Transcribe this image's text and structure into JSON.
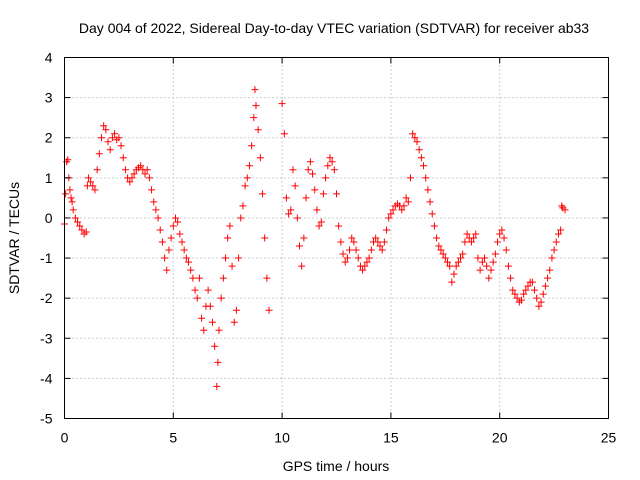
{
  "chart_data": {
    "type": "scatter",
    "title": "Day 004 of 2022, Sidereal Day-to-day VTEC variation (SDTVAR) for receiver ab33",
    "xlabel": "GPS time / hours",
    "ylabel": "SDTVAR / TECUs",
    "xlim": [
      0,
      25
    ],
    "ylim": [
      -5,
      4
    ],
    "xticks": [
      0,
      5,
      10,
      15,
      20,
      25
    ],
    "yticks": [
      -5,
      -4,
      -3,
      -2,
      -1,
      0,
      1,
      2,
      3,
      4
    ],
    "xtick_labels": [
      "0",
      "5",
      "10",
      "15",
      "20",
      "25"
    ],
    "ytick_labels": [
      "-5",
      "-4",
      "-3",
      "-2",
      "-1",
      "0",
      "1",
      "2",
      "3",
      "4"
    ],
    "grid": true,
    "marker": "+",
    "marker_color": "#ff0000",
    "series": [
      {
        "name": "SDTVAR",
        "points": [
          [
            0.0,
            -0.15
          ],
          [
            0.05,
            0.6
          ],
          [
            0.1,
            1.4
          ],
          [
            0.15,
            1.45
          ],
          [
            0.2,
            1.0
          ],
          [
            0.25,
            0.7
          ],
          [
            0.3,
            0.5
          ],
          [
            0.35,
            0.4
          ],
          [
            0.4,
            0.2
          ],
          [
            0.5,
            0.0
          ],
          [
            0.6,
            -0.1
          ],
          [
            0.7,
            -0.2
          ],
          [
            0.8,
            -0.3
          ],
          [
            0.9,
            -0.4
          ],
          [
            1.0,
            -0.35
          ],
          [
            1.05,
            0.8
          ],
          [
            1.1,
            1.0
          ],
          [
            1.2,
            0.9
          ],
          [
            1.3,
            0.8
          ],
          [
            1.4,
            0.7
          ],
          [
            1.5,
            1.2
          ],
          [
            1.6,
            1.6
          ],
          [
            1.7,
            2.0
          ],
          [
            1.8,
            2.3
          ],
          [
            1.9,
            2.2
          ],
          [
            2.0,
            1.9
          ],
          [
            2.1,
            1.7
          ],
          [
            2.2,
            2.0
          ],
          [
            2.3,
            2.1
          ],
          [
            2.4,
            1.95
          ],
          [
            2.5,
            2.0
          ],
          [
            2.6,
            1.8
          ],
          [
            2.7,
            1.5
          ],
          [
            2.8,
            1.2
          ],
          [
            2.9,
            1.0
          ],
          [
            3.0,
            0.9
          ],
          [
            3.1,
            1.0
          ],
          [
            3.2,
            1.1
          ],
          [
            3.3,
            1.2
          ],
          [
            3.4,
            1.25
          ],
          [
            3.5,
            1.3
          ],
          [
            3.6,
            1.2
          ],
          [
            3.7,
            1.1
          ],
          [
            3.8,
            1.2
          ],
          [
            3.9,
            1.0
          ],
          [
            4.0,
            0.7
          ],
          [
            4.1,
            0.4
          ],
          [
            4.2,
            0.2
          ],
          [
            4.3,
            0.0
          ],
          [
            4.4,
            -0.3
          ],
          [
            4.5,
            -0.6
          ],
          [
            4.6,
            -1.0
          ],
          [
            4.7,
            -1.3
          ],
          [
            4.8,
            -0.8
          ],
          [
            4.9,
            -0.5
          ],
          [
            5.0,
            -0.2
          ],
          [
            5.1,
            0.0
          ],
          [
            5.2,
            -0.1
          ],
          [
            5.3,
            -0.4
          ],
          [
            5.4,
            -0.6
          ],
          [
            5.5,
            -0.8
          ],
          [
            5.6,
            -1.0
          ],
          [
            5.7,
            -1.1
          ],
          [
            5.8,
            -1.3
          ],
          [
            5.9,
            -1.5
          ],
          [
            6.0,
            -1.8
          ],
          [
            6.1,
            -2.0
          ],
          [
            6.2,
            -1.5
          ],
          [
            6.3,
            -2.5
          ],
          [
            6.4,
            -2.8
          ],
          [
            6.5,
            -2.2
          ],
          [
            6.6,
            -1.8
          ],
          [
            6.7,
            -2.2
          ],
          [
            6.8,
            -2.6
          ],
          [
            6.9,
            -3.2
          ],
          [
            7.0,
            -4.2
          ],
          [
            7.05,
            -3.6
          ],
          [
            7.1,
            -2.8
          ],
          [
            7.2,
            -2.0
          ],
          [
            7.3,
            -1.5
          ],
          [
            7.4,
            -1.0
          ],
          [
            7.5,
            -0.5
          ],
          [
            7.6,
            -0.2
          ],
          [
            7.7,
            -1.2
          ],
          [
            7.8,
            -2.6
          ],
          [
            7.9,
            -2.3
          ],
          [
            8.0,
            -1.0
          ],
          [
            8.1,
            0.0
          ],
          [
            8.2,
            0.3
          ],
          [
            8.3,
            0.8
          ],
          [
            8.4,
            1.0
          ],
          [
            8.5,
            1.3
          ],
          [
            8.6,
            1.8
          ],
          [
            8.7,
            2.5
          ],
          [
            8.75,
            3.2
          ],
          [
            8.8,
            2.8
          ],
          [
            8.9,
            2.2
          ],
          [
            9.0,
            1.5
          ],
          [
            9.1,
            0.6
          ],
          [
            9.2,
            -0.5
          ],
          [
            9.3,
            -1.5
          ],
          [
            9.4,
            -2.3
          ],
          [
            10.0,
            2.85
          ],
          [
            10.1,
            2.1
          ],
          [
            10.2,
            0.5
          ],
          [
            10.3,
            0.1
          ],
          [
            10.4,
            0.2
          ],
          [
            10.5,
            1.2
          ],
          [
            10.6,
            0.8
          ],
          [
            10.7,
            0.0
          ],
          [
            10.8,
            -0.7
          ],
          [
            10.9,
            -1.2
          ],
          [
            11.0,
            -0.5
          ],
          [
            11.1,
            0.5
          ],
          [
            11.2,
            1.2
          ],
          [
            11.3,
            1.4
          ],
          [
            11.4,
            1.1
          ],
          [
            11.5,
            0.7
          ],
          [
            11.6,
            0.2
          ],
          [
            11.7,
            -0.2
          ],
          [
            11.8,
            -0.1
          ],
          [
            11.9,
            0.6
          ],
          [
            12.0,
            1.0
          ],
          [
            12.1,
            1.3
          ],
          [
            12.2,
            1.5
          ],
          [
            12.3,
            1.4
          ],
          [
            12.4,
            1.2
          ],
          [
            12.5,
            0.6
          ],
          [
            12.6,
            -0.2
          ],
          [
            12.7,
            -0.6
          ],
          [
            12.8,
            -0.9
          ],
          [
            12.9,
            -1.1
          ],
          [
            13.0,
            -1.0
          ],
          [
            13.1,
            -0.8
          ],
          [
            13.2,
            -0.5
          ],
          [
            13.3,
            -0.6
          ],
          [
            13.4,
            -0.8
          ],
          [
            13.5,
            -1.0
          ],
          [
            13.6,
            -1.2
          ],
          [
            13.7,
            -1.3
          ],
          [
            13.8,
            -1.2
          ],
          [
            13.9,
            -1.1
          ],
          [
            14.0,
            -1.0
          ],
          [
            14.1,
            -0.8
          ],
          [
            14.2,
            -0.6
          ],
          [
            14.3,
            -0.5
          ],
          [
            14.4,
            -0.6
          ],
          [
            14.5,
            -0.7
          ],
          [
            14.6,
            -0.8
          ],
          [
            14.7,
            -0.6
          ],
          [
            14.8,
            -0.3
          ],
          [
            14.9,
            0.0
          ],
          [
            15.0,
            0.1
          ],
          [
            15.1,
            0.2
          ],
          [
            15.2,
            0.3
          ],
          [
            15.3,
            0.35
          ],
          [
            15.4,
            0.3
          ],
          [
            15.5,
            0.2
          ],
          [
            15.6,
            0.3
          ],
          [
            15.7,
            0.5
          ],
          [
            15.8,
            0.4
          ],
          [
            15.9,
            1.0
          ],
          [
            16.0,
            2.1
          ],
          [
            16.1,
            2.0
          ],
          [
            16.2,
            1.9
          ],
          [
            16.3,
            1.7
          ],
          [
            16.4,
            1.5
          ],
          [
            16.5,
            1.3
          ],
          [
            16.6,
            1.0
          ],
          [
            16.7,
            0.7
          ],
          [
            16.8,
            0.4
          ],
          [
            16.9,
            0.1
          ],
          [
            17.0,
            -0.2
          ],
          [
            17.1,
            -0.5
          ],
          [
            17.2,
            -0.7
          ],
          [
            17.3,
            -0.8
          ],
          [
            17.4,
            -0.9
          ],
          [
            17.5,
            -1.0
          ],
          [
            17.6,
            -1.1
          ],
          [
            17.7,
            -1.2
          ],
          [
            17.8,
            -1.6
          ],
          [
            17.9,
            -1.4
          ],
          [
            18.0,
            -1.2
          ],
          [
            18.1,
            -1.1
          ],
          [
            18.2,
            -1.0
          ],
          [
            18.3,
            -0.9
          ],
          [
            18.4,
            -0.6
          ],
          [
            18.5,
            -0.4
          ],
          [
            18.6,
            -0.5
          ],
          [
            18.7,
            -0.6
          ],
          [
            18.8,
            -0.5
          ],
          [
            18.9,
            -0.4
          ],
          [
            19.0,
            -1.0
          ],
          [
            19.1,
            -1.3
          ],
          [
            19.2,
            -1.1
          ],
          [
            19.3,
            -1.0
          ],
          [
            19.4,
            -1.2
          ],
          [
            19.5,
            -1.5
          ],
          [
            19.6,
            -1.3
          ],
          [
            19.7,
            -1.1
          ],
          [
            19.8,
            -0.9
          ],
          [
            19.9,
            -0.6
          ],
          [
            20.0,
            -0.4
          ],
          [
            20.1,
            -0.3
          ],
          [
            20.2,
            -0.5
          ],
          [
            20.3,
            -0.8
          ],
          [
            20.4,
            -1.2
          ],
          [
            20.5,
            -1.5
          ],
          [
            20.6,
            -1.8
          ],
          [
            20.7,
            -1.9
          ],
          [
            20.8,
            -2.0
          ],
          [
            20.9,
            -2.1
          ],
          [
            21.0,
            -2.05
          ],
          [
            21.1,
            -1.9
          ],
          [
            21.2,
            -1.8
          ],
          [
            21.3,
            -1.7
          ],
          [
            21.4,
            -1.6
          ],
          [
            21.5,
            -1.6
          ],
          [
            21.6,
            -1.8
          ],
          [
            21.7,
            -2.0
          ],
          [
            21.8,
            -2.2
          ],
          [
            21.9,
            -2.1
          ],
          [
            22.0,
            -1.9
          ],
          [
            22.1,
            -1.7
          ],
          [
            22.2,
            -1.5
          ],
          [
            22.3,
            -1.3
          ],
          [
            22.4,
            -1.0
          ],
          [
            22.5,
            -0.8
          ],
          [
            22.6,
            -0.6
          ],
          [
            22.7,
            -0.4
          ],
          [
            22.8,
            -0.3
          ],
          [
            22.85,
            0.3
          ],
          [
            22.9,
            0.25
          ],
          [
            23.0,
            0.2
          ]
        ]
      }
    ]
  }
}
